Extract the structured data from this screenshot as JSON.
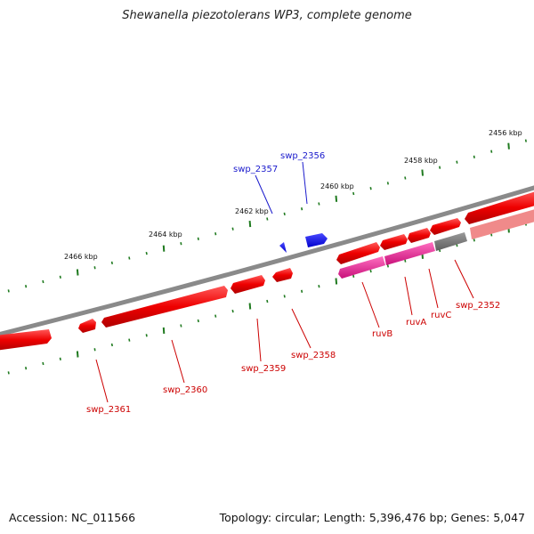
{
  "title": "Shewanella piezotolerans WP3, complete genome",
  "footer": {
    "accession": "Accession: NC_011566",
    "summary": "Topology: circular; Length: 5,396,476 bp; Genes: 5,047"
  },
  "colors": {
    "forward_gene": "#ee0000",
    "reverse_gene": "#ee0000",
    "ruv_gene": "#e0288e",
    "other_gene": "#777777",
    "upper_strand_gene": "#1a1aee",
    "backbone": "#7f7f7f",
    "tick": "#1f7a1f",
    "label_red": "#cc0000",
    "label_blue": "#1a1acc"
  },
  "scale_labels": [
    "2456 kbp",
    "2458 kbp",
    "2460 kbp",
    "2462 kbp",
    "2464 kbp",
    "2466 kbp"
  ],
  "gene_labels": {
    "swp_2357": "swp_2357",
    "swp_2356": "swp_2356",
    "swp_2361": "swp_2361",
    "swp_2360": "swp_2360",
    "swp_2359": "swp_2359",
    "swp_2358": "swp_2358",
    "ruvB": "ruvB",
    "ruvA": "ruvA",
    "ruvC": "ruvC",
    "swp_2352": "swp_2352"
  }
}
